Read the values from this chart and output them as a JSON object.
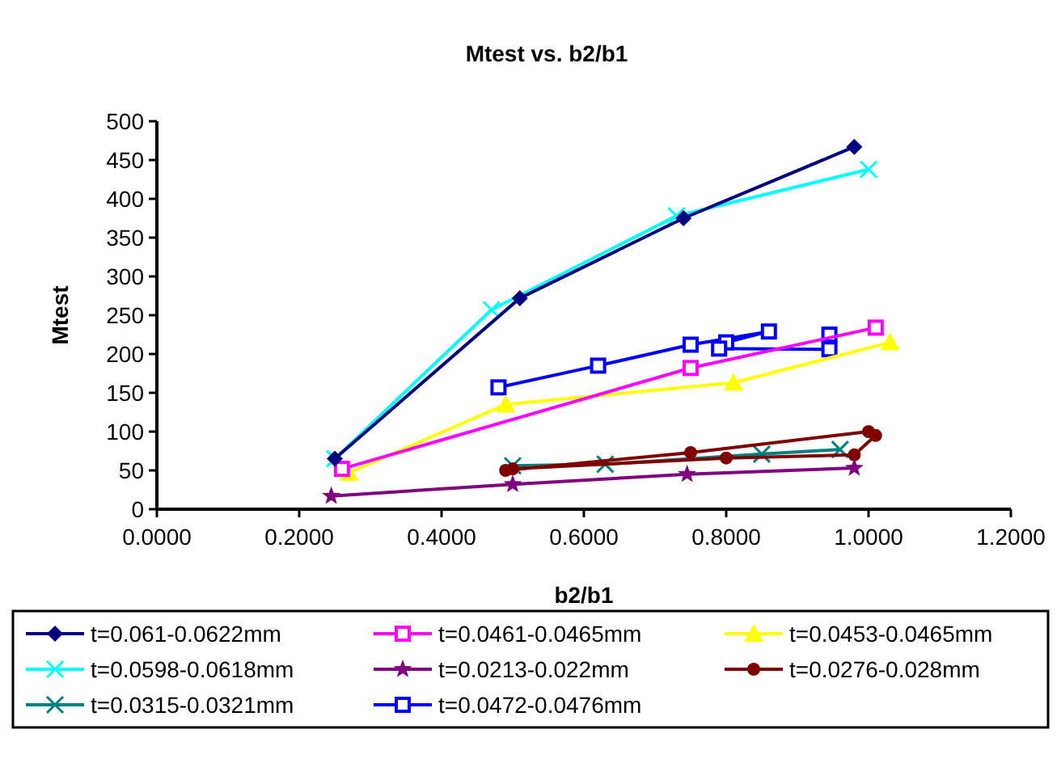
{
  "chart_data": {
    "type": "line",
    "title": "Mtest vs. b2/b1",
    "xlabel": "b2/b1",
    "ylabel": "Mtest",
    "xlim": [
      0,
      1.2
    ],
    "xticks": [
      {
        "value": 0,
        "label": "0.0000"
      },
      {
        "value": 0.2,
        "label": "0.2000"
      },
      {
        "value": 0.4,
        "label": "0.4000"
      },
      {
        "value": 0.6,
        "label": "0.6000"
      },
      {
        "value": 0.8,
        "label": "0.8000"
      },
      {
        "value": 1,
        "label": "1.0000"
      },
      {
        "value": 1.2,
        "label": "1.2000"
      }
    ],
    "ylim": [
      0,
      500
    ],
    "yticks": [
      0,
      50,
      100,
      150,
      200,
      250,
      300,
      350,
      400,
      450,
      500
    ],
    "grid": false,
    "legend": "bottom",
    "series": [
      {
        "name": "t=0.061-0.0622mm",
        "color": "#000080",
        "marker": "diamond",
        "x": [
          0.25,
          0.51,
          0.74,
          0.98
        ],
        "values": [
          65,
          272,
          375,
          467
        ]
      },
      {
        "name": "t=0.0461-0.0465mm",
        "color": "#ff00ff",
        "marker": "square",
        "x": [
          0.26,
          0.75,
          1.01
        ],
        "values": [
          52,
          182,
          234
        ]
      },
      {
        "name": "t=0.0453-0.0465mm",
        "color": "#ffff00",
        "marker": "triangle",
        "x": [
          0.27,
          0.49,
          0.81,
          1.03
        ],
        "values": [
          47,
          135,
          163,
          215
        ]
      },
      {
        "name": "t=0.0598-0.0618mm",
        "color": "#00ffff",
        "marker": "cross",
        "x": [
          0.25,
          0.47,
          0.73,
          1.0
        ],
        "values": [
          65,
          257,
          378,
          438
        ]
      },
      {
        "name": "t=0.0213-0.022mm",
        "color": "#800080",
        "marker": "star",
        "x": [
          0.245,
          0.5,
          0.745,
          0.98
        ],
        "values": [
          17,
          32,
          45,
          53
        ]
      },
      {
        "name": "t=0.0276-0.028mm",
        "color": "#800000",
        "marker": "circle",
        "x": [
          0.49,
          0.75,
          1.0,
          1.01,
          0.98,
          0.8,
          0.5
        ],
        "values": [
          50,
          73,
          100,
          95,
          70,
          66,
          52
        ]
      },
      {
        "name": "t=0.0315-0.0321mm",
        "color": "#008080",
        "marker": "cross",
        "x": [
          0.5,
          0.63,
          0.85,
          0.96
        ],
        "values": [
          56,
          58,
          71,
          77
        ]
      },
      {
        "name": "t=0.0472-0.0476mm",
        "color": "#0000ff",
        "marker": "square",
        "x": [
          0.48,
          0.62,
          0.75,
          0.86,
          0.8,
          0.79,
          0.945,
          0.945
        ],
        "values": [
          157,
          185,
          212,
          229,
          215,
          207,
          206,
          225
        ]
      }
    ]
  }
}
